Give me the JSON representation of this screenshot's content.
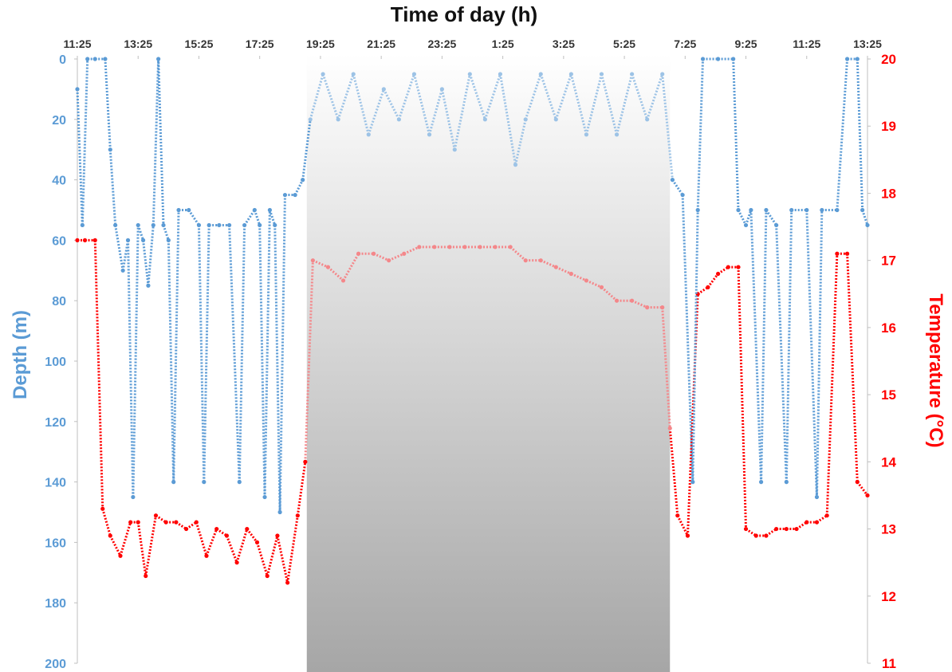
{
  "chart_data": {
    "type": "scatter",
    "title": "Time of day (h)",
    "xlabel": "Time of day (h)",
    "ylabel_left": "Depth (m)",
    "ylabel_right": "Temperature (°C)",
    "x_tick_labels": [
      "11:25",
      "13:25",
      "15:25",
      "17:25",
      "19:25",
      "21:25",
      "23:25",
      "1:25",
      "3:25",
      "5:25",
      "7:25",
      "9:25",
      "11:25",
      "13:25"
    ],
    "x_range_hours_elapsed": [
      0,
      26
    ],
    "y_left_range": [
      0,
      200
    ],
    "y_left_inverted": true,
    "y_left_ticks": [
      0,
      20,
      40,
      60,
      80,
      100,
      120,
      140,
      160,
      180,
      200
    ],
    "y_right_range": [
      11,
      20
    ],
    "y_right_ticks": [
      11,
      12,
      13,
      14,
      15,
      16,
      17,
      18,
      19,
      20
    ],
    "night_shading": {
      "from": "18:58",
      "to": "6:55"
    },
    "colors": {
      "depth": "#5b9bd5",
      "depth_night": "#9dc3e6",
      "temperature": "#ff0000",
      "temperature_night": "#f4878a",
      "night_top": "#ffffff",
      "night_bottom": "#a6a6a6"
    },
    "series": [
      {
        "name": "Depth (m)",
        "axis": "left",
        "x_label": "Time of day",
        "points": [
          [
            "11:25",
            10
          ],
          [
            "11:35",
            55
          ],
          [
            "11:45",
            0
          ],
          [
            "12:00",
            0
          ],
          [
            "12:20",
            0
          ],
          [
            "12:30",
            30
          ],
          [
            "12:40",
            55
          ],
          [
            "12:55",
            70
          ],
          [
            "13:05",
            60
          ],
          [
            "13:15",
            145
          ],
          [
            "13:25",
            55
          ],
          [
            "13:35",
            60
          ],
          [
            "13:45",
            75
          ],
          [
            "13:55",
            55
          ],
          [
            "14:05",
            0
          ],
          [
            "14:15",
            55
          ],
          [
            "14:25",
            60
          ],
          [
            "14:35",
            140
          ],
          [
            "14:45",
            50
          ],
          [
            "15:05",
            50
          ],
          [
            "15:25",
            55
          ],
          [
            "15:35",
            140
          ],
          [
            "15:45",
            55
          ],
          [
            "16:05",
            55
          ],
          [
            "16:25",
            55
          ],
          [
            "16:45",
            140
          ],
          [
            "16:55",
            55
          ],
          [
            "17:15",
            50
          ],
          [
            "17:25",
            55
          ],
          [
            "17:35",
            145
          ],
          [
            "17:45",
            50
          ],
          [
            "17:55",
            55
          ],
          [
            "18:05",
            150
          ],
          [
            "18:15",
            45
          ],
          [
            "18:35",
            45
          ],
          [
            "18:50",
            40
          ],
          [
            "19:05",
            20
          ],
          [
            "19:30",
            5
          ],
          [
            "20:00",
            20
          ],
          [
            "20:30",
            5
          ],
          [
            "21:00",
            25
          ],
          [
            "21:30",
            10
          ],
          [
            "22:00",
            20
          ],
          [
            "22:30",
            5
          ],
          [
            "23:00",
            25
          ],
          [
            "23:25",
            10
          ],
          [
            "23:50",
            30
          ],
          [
            "0:20",
            5
          ],
          [
            "0:50",
            20
          ],
          [
            "1:20",
            5
          ],
          [
            "1:50",
            35
          ],
          [
            "2:10",
            20
          ],
          [
            "2:40",
            5
          ],
          [
            "3:10",
            20
          ],
          [
            "3:40",
            5
          ],
          [
            "4:10",
            25
          ],
          [
            "4:40",
            5
          ],
          [
            "5:10",
            25
          ],
          [
            "5:40",
            5
          ],
          [
            "6:10",
            20
          ],
          [
            "6:40",
            5
          ],
          [
            "7:00",
            40
          ],
          [
            "7:20",
            45
          ],
          [
            "7:40",
            140
          ],
          [
            "7:50",
            50
          ],
          [
            "8:00",
            0
          ],
          [
            "8:30",
            0
          ],
          [
            "9:00",
            0
          ],
          [
            "9:10",
            50
          ],
          [
            "9:25",
            55
          ],
          [
            "9:35",
            50
          ],
          [
            "9:55",
            140
          ],
          [
            "10:05",
            50
          ],
          [
            "10:25",
            55
          ],
          [
            "10:45",
            140
          ],
          [
            "10:55",
            50
          ],
          [
            "11:25",
            50
          ],
          [
            "11:45",
            145
          ],
          [
            "11:55",
            50
          ],
          [
            "12:25",
            50
          ],
          [
            "12:45",
            0
          ],
          [
            "13:05",
            0
          ],
          [
            "13:15",
            50
          ],
          [
            "13:25",
            55
          ]
        ]
      },
      {
        "name": "Temperature (°C)",
        "axis": "right",
        "x_label": "Time of day",
        "points": [
          [
            "11:25",
            17.3
          ],
          [
            "11:40",
            17.3
          ],
          [
            "12:00",
            17.3
          ],
          [
            "12:15",
            13.3
          ],
          [
            "12:30",
            12.9
          ],
          [
            "12:50",
            12.6
          ],
          [
            "13:10",
            13.1
          ],
          [
            "13:25",
            13.1
          ],
          [
            "13:40",
            12.3
          ],
          [
            "14:00",
            13.2
          ],
          [
            "14:20",
            13.1
          ],
          [
            "14:40",
            13.1
          ],
          [
            "15:00",
            13.0
          ],
          [
            "15:20",
            13.1
          ],
          [
            "15:40",
            12.6
          ],
          [
            "16:00",
            13.0
          ],
          [
            "16:20",
            12.9
          ],
          [
            "16:40",
            12.5
          ],
          [
            "17:00",
            13.0
          ],
          [
            "17:20",
            12.8
          ],
          [
            "17:40",
            12.3
          ],
          [
            "18:00",
            12.9
          ],
          [
            "18:20",
            12.2
          ],
          [
            "18:40",
            13.2
          ],
          [
            "18:55",
            14.0
          ],
          [
            "19:10",
            17.0
          ],
          [
            "19:40",
            16.9
          ],
          [
            "20:10",
            16.7
          ],
          [
            "20:40",
            17.1
          ],
          [
            "21:10",
            17.1
          ],
          [
            "21:40",
            17.0
          ],
          [
            "22:10",
            17.1
          ],
          [
            "22:40",
            17.2
          ],
          [
            "23:10",
            17.2
          ],
          [
            "23:40",
            17.2
          ],
          [
            "0:10",
            17.2
          ],
          [
            "0:40",
            17.2
          ],
          [
            "1:10",
            17.2
          ],
          [
            "1:40",
            17.2
          ],
          [
            "2:10",
            17.0
          ],
          [
            "2:40",
            17.0
          ],
          [
            "3:10",
            16.9
          ],
          [
            "3:40",
            16.8
          ],
          [
            "4:10",
            16.7
          ],
          [
            "4:40",
            16.6
          ],
          [
            "5:10",
            16.4
          ],
          [
            "5:40",
            16.4
          ],
          [
            "6:10",
            16.3
          ],
          [
            "6:40",
            16.3
          ],
          [
            "6:55",
            14.5
          ],
          [
            "7:10",
            13.2
          ],
          [
            "7:30",
            12.9
          ],
          [
            "7:50",
            16.5
          ],
          [
            "8:10",
            16.6
          ],
          [
            "8:30",
            16.8
          ],
          [
            "8:50",
            16.9
          ],
          [
            "9:10",
            16.9
          ],
          [
            "9:25",
            13.0
          ],
          [
            "9:45",
            12.9
          ],
          [
            "10:05",
            12.9
          ],
          [
            "10:25",
            13.0
          ],
          [
            "10:45",
            13.0
          ],
          [
            "11:05",
            13.0
          ],
          [
            "11:25",
            13.1
          ],
          [
            "11:45",
            13.1
          ],
          [
            "12:05",
            13.2
          ],
          [
            "12:25",
            17.1
          ],
          [
            "12:45",
            17.1
          ],
          [
            "13:05",
            13.7
          ],
          [
            "13:25",
            13.5
          ]
        ]
      }
    ]
  }
}
